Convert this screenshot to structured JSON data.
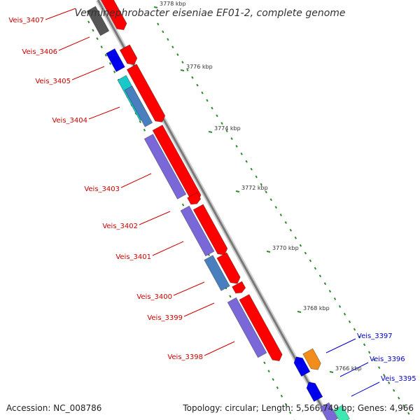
{
  "title": "Verminephrobacter eiseniae EF01-2, complete genome",
  "footer": {
    "accession": "Accession: NC_008786",
    "summary": "Topology: circular; Length: 5,566,749 bp; Genes: 4,966"
  },
  "colors": {
    "forward_cds": "#ff0000",
    "reverse_cds": "#7b68d8",
    "backbone": "#8c8c8c",
    "tick": "#2e8b2e",
    "label_reverse": "#cc0000",
    "label_forward": "#0000cc"
  },
  "ticks": [
    {
      "label": "3778 kbp"
    },
    {
      "label": "3776 kbp"
    },
    {
      "label": "3774 kbp"
    },
    {
      "label": "3772 kbp"
    },
    {
      "label": "3770 kbp"
    },
    {
      "label": "3768 kbp"
    },
    {
      "label": "3766 kbp"
    }
  ],
  "gene_labels": [
    {
      "text": "Veis_3407",
      "strand": "reverse"
    },
    {
      "text": "Veis_3406",
      "strand": "reverse"
    },
    {
      "text": "Veis_3405",
      "strand": "reverse"
    },
    {
      "text": "Veis_3404",
      "strand": "reverse"
    },
    {
      "text": "Veis_3403",
      "strand": "reverse"
    },
    {
      "text": "Veis_3402",
      "strand": "reverse"
    },
    {
      "text": "Veis_3401",
      "strand": "reverse"
    },
    {
      "text": "Veis_3400",
      "strand": "reverse"
    },
    {
      "text": "Veis_3399",
      "strand": "reverse"
    },
    {
      "text": "Veis_3398",
      "strand": "reverse"
    },
    {
      "text": "Veis_3397",
      "strand": "forward"
    },
    {
      "text": "Veis_3396",
      "strand": "forward"
    },
    {
      "text": "Veis_3395",
      "strand": "forward"
    }
  ]
}
